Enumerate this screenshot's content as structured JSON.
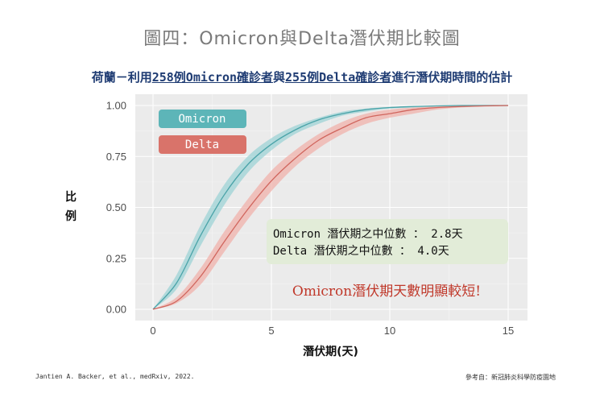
{
  "title": "圖四：Omicron與Delta潛伏期比較圖",
  "subtitle": {
    "part1": "荷蘭－利用",
    "part2": "258例Omicron確診者",
    "part3": "與",
    "part4": "255例Delta確診者",
    "part5": "進行潛伏期時間的估計"
  },
  "ylabel": {
    "line1": "比",
    "line2": "例"
  },
  "legend": [
    {
      "label": "Omicron",
      "color": "#5db5b8"
    },
    {
      "label": "Delta",
      "color": "#d9736a"
    }
  ],
  "median_box": {
    "line1": "Omicron 潛伏期之中位數 ： 2.8天",
    "line2": "Delta   潛伏期之中位數 ： 4.0天"
  },
  "annotation": "Omicron潛伏期天數明顯較短!",
  "annotation_color": "#c0392b",
  "source": "Jantien A. Backer, et al., medRxiv, 2022.",
  "reference": "參考自：新冠肺炎科學防疫園地",
  "chart_data": {
    "type": "line",
    "xlabel": "潛伏期(天)",
    "ylabel": "比例",
    "xlim": [
      0,
      15
    ],
    "ylim": [
      0,
      1
    ],
    "xticks": [
      0,
      5,
      10,
      15
    ],
    "yticks": [
      0.0,
      0.25,
      0.5,
      0.75,
      1.0
    ],
    "ytick_labels": [
      "0.00",
      "0.25",
      "0.50",
      "0.75",
      "1.00"
    ],
    "grid": true,
    "legend_position": "top-left",
    "x": [
      0,
      1,
      2,
      3,
      4,
      5,
      6,
      7,
      8,
      9,
      10,
      11,
      12,
      13,
      14,
      15
    ],
    "series": [
      {
        "name": "Omicron",
        "color": "#5db5b8",
        "values": [
          0.0,
          0.13,
          0.36,
          0.56,
          0.71,
          0.81,
          0.88,
          0.93,
          0.96,
          0.98,
          0.99,
          0.995,
          0.998,
          1.0,
          1.0,
          1.0
        ],
        "lower": [
          0.0,
          0.1,
          0.31,
          0.51,
          0.67,
          0.78,
          0.86,
          0.91,
          0.95,
          0.97,
          0.985,
          0.99,
          0.996,
          0.998,
          1.0,
          1.0
        ],
        "upper": [
          0.0,
          0.17,
          0.41,
          0.61,
          0.75,
          0.84,
          0.9,
          0.94,
          0.97,
          0.985,
          0.993,
          0.997,
          0.999,
          1.0,
          1.0,
          1.0
        ]
      },
      {
        "name": "Delta",
        "color": "#d9736a",
        "values": [
          0.0,
          0.04,
          0.16,
          0.33,
          0.49,
          0.63,
          0.74,
          0.83,
          0.89,
          0.94,
          0.96,
          0.98,
          0.99,
          0.995,
          0.998,
          1.0
        ],
        "lower": [
          0.0,
          0.03,
          0.12,
          0.28,
          0.44,
          0.58,
          0.7,
          0.79,
          0.86,
          0.91,
          0.94,
          0.96,
          0.98,
          0.99,
          0.996,
          1.0
        ],
        "upper": [
          0.0,
          0.06,
          0.2,
          0.38,
          0.54,
          0.68,
          0.78,
          0.86,
          0.92,
          0.96,
          0.98,
          0.99,
          0.995,
          0.998,
          1.0,
          1.0
        ]
      }
    ]
  }
}
